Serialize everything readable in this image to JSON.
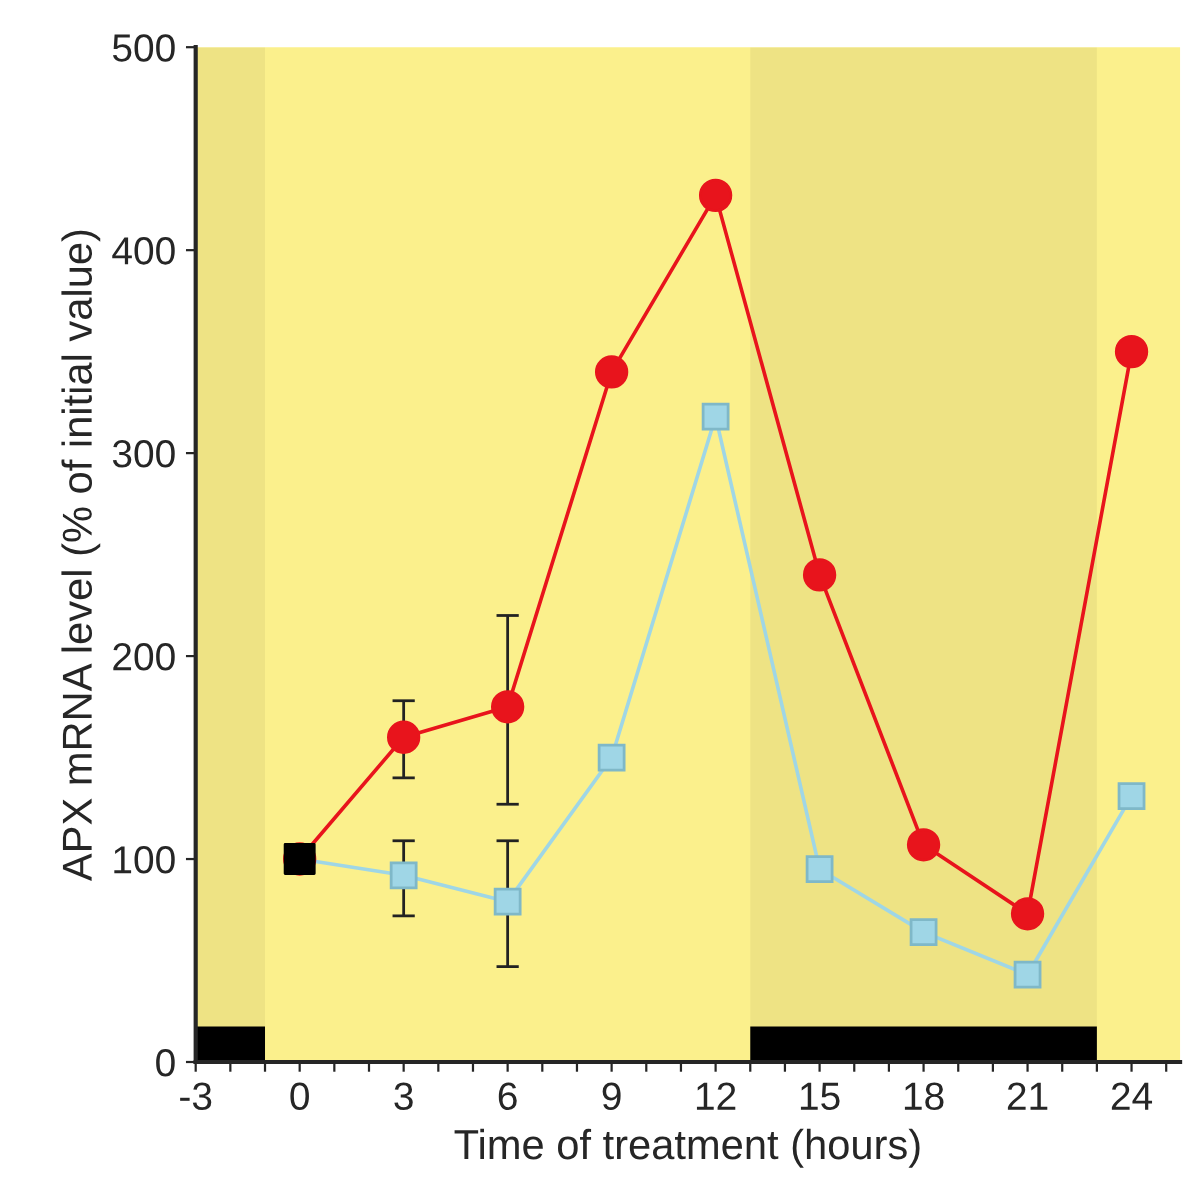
{
  "chart_data": {
    "type": "line",
    "xlabel": "Time of treatment (hours)",
    "ylabel": "APX mRNA level (% of initial value)",
    "xlim": [
      -3,
      25.4
    ],
    "ylim": [
      0,
      500
    ],
    "xticks": [
      -3,
      {
        "value": -2,
        "label": null
      },
      {
        "value": -1,
        "label": null
      },
      0,
      {
        "value": 1,
        "label": null
      },
      {
        "value": 2,
        "label": null
      },
      3,
      {
        "value": 4,
        "label": null
      },
      {
        "value": 5,
        "label": null
      },
      6,
      {
        "value": 7,
        "label": null
      },
      {
        "value": 8,
        "label": null
      },
      9,
      {
        "value": 10,
        "label": null
      },
      {
        "value": 11,
        "label": null
      },
      12,
      {
        "value": 13,
        "label": null
      },
      {
        "value": 14,
        "label": null
      },
      15,
      {
        "value": 16,
        "label": null
      },
      {
        "value": 17,
        "label": null
      },
      18,
      {
        "value": 19,
        "label": null
      },
      {
        "value": 20,
        "label": null
      },
      21,
      {
        "value": 22,
        "label": null
      },
      {
        "value": 23,
        "label": null
      },
      24,
      {
        "value": 25,
        "label": null
      }
    ],
    "yticks": [
      0,
      100,
      200,
      300,
      400,
      500
    ],
    "grid": false,
    "legend": false,
    "line_style": "solid",
    "series": [
      {
        "marker": "circle",
        "color": "#e8141c",
        "x": [
          0,
          3,
          6,
          9,
          12,
          15,
          18,
          21,
          24
        ],
        "values": [
          100,
          160,
          175,
          340,
          427,
          240,
          107,
          73,
          350
        ],
        "errors": [
          null,
          [
            140,
            178
          ],
          [
            127,
            220
          ],
          null,
          null,
          null,
          null,
          null,
          null
        ]
      },
      {
        "marker": "square",
        "color": "#9fd6e6",
        "x": [
          0,
          3,
          6,
          9,
          12,
          15,
          18,
          21,
          24
        ],
        "values": [
          100,
          92,
          79,
          150,
          318,
          95,
          64,
          43,
          131
        ],
        "errors": [
          null,
          [
            72,
            109
          ],
          [
            47,
            109
          ],
          null,
          null,
          null,
          null,
          null,
          null
        ]
      },
      {
        "type": "scatter",
        "marker": "square",
        "color": "#000000",
        "x": [
          0
        ],
        "values": [
          100
        ]
      }
    ],
    "bands": [
      {
        "axis": "x",
        "from": -3,
        "to": -1,
        "color": "#000000"
      },
      {
        "axis": "x",
        "from": 13,
        "to": 23,
        "color": "#000000"
      }
    ]
  }
}
